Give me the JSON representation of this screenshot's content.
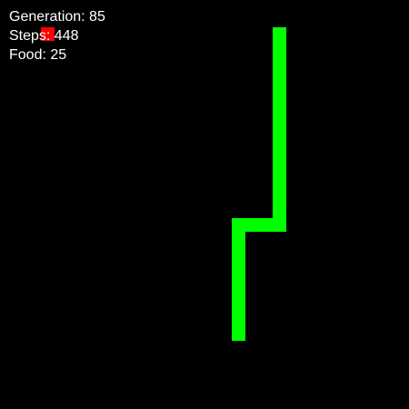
{
  "game": {
    "grid_cells": 30,
    "colors": {
      "background": "#000000",
      "snake": "#00ff00",
      "food": "#ff0000",
      "text": "#ffffff"
    },
    "snake_cells": [
      [
        20,
        2
      ],
      [
        20,
        3
      ],
      [
        20,
        4
      ],
      [
        20,
        5
      ],
      [
        20,
        6
      ],
      [
        20,
        7
      ],
      [
        20,
        8
      ],
      [
        20,
        9
      ],
      [
        20,
        10
      ],
      [
        20,
        11
      ],
      [
        20,
        12
      ],
      [
        20,
        13
      ],
      [
        20,
        14
      ],
      [
        20,
        15
      ],
      [
        20,
        16
      ],
      [
        19,
        16
      ],
      [
        18,
        16
      ],
      [
        17,
        16
      ],
      [
        17,
        17
      ],
      [
        17,
        18
      ],
      [
        17,
        19
      ],
      [
        17,
        20
      ],
      [
        17,
        21
      ],
      [
        17,
        22
      ],
      [
        17,
        23
      ],
      [
        17,
        24
      ]
    ],
    "food_cell": [
      3,
      2
    ]
  },
  "hud": {
    "generation_text": "Generation: 85",
    "steps_text": "Steps: 448",
    "food_text": "Food: 25"
  }
}
